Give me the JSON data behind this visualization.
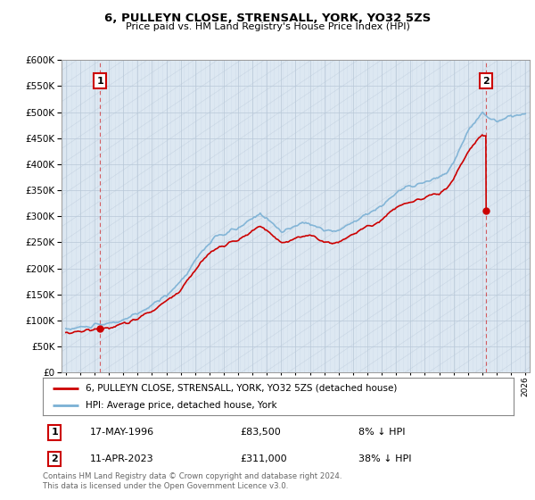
{
  "title": "6, PULLEYN CLOSE, STRENSALL, YORK, YO32 5ZS",
  "subtitle": "Price paid vs. HM Land Registry's House Price Index (HPI)",
  "sale1_date": "17-MAY-1996",
  "sale1_price": 83500,
  "sale1_label": "1",
  "sale1_hpi_pct": "8% ↓ HPI",
  "sale2_date": "11-APR-2023",
  "sale2_price": 311000,
  "sale2_label": "2",
  "sale2_hpi_pct": "38% ↓ HPI",
  "legend_house": "6, PULLEYN CLOSE, STRENSALL, YORK, YO32 5ZS (detached house)",
  "legend_hpi": "HPI: Average price, detached house, York",
  "footnote": "Contains HM Land Registry data © Crown copyright and database right 2024.\nThis data is licensed under the Open Government Licence v3.0.",
  "house_color": "#cc0000",
  "hpi_color": "#7ab0d4",
  "ylim": [
    0,
    600000
  ],
  "ytick_step": 50000,
  "xlim_start": 1993.7,
  "xlim_end": 2026.3,
  "sale1_x": 1996.38,
  "sale2_x": 2023.27
}
